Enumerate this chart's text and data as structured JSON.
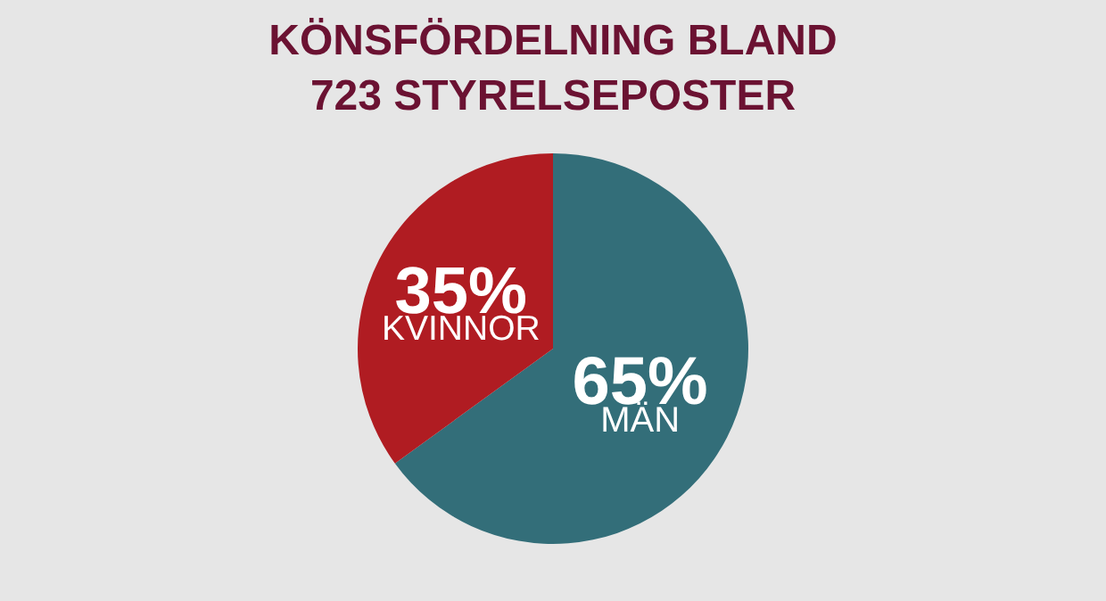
{
  "chart_data": {
    "type": "pie",
    "title": "KÖNSFÖRDELNING BLAND\n723 STYRELSEPOSTER",
    "categories": [
      "MÄN",
      "KVINNOR"
    ],
    "values": [
      65,
      35
    ],
    "value_labels": [
      "65%",
      "35%"
    ],
    "colors": [
      "#336e79",
      "#b01c22"
    ],
    "legend": false
  }
}
